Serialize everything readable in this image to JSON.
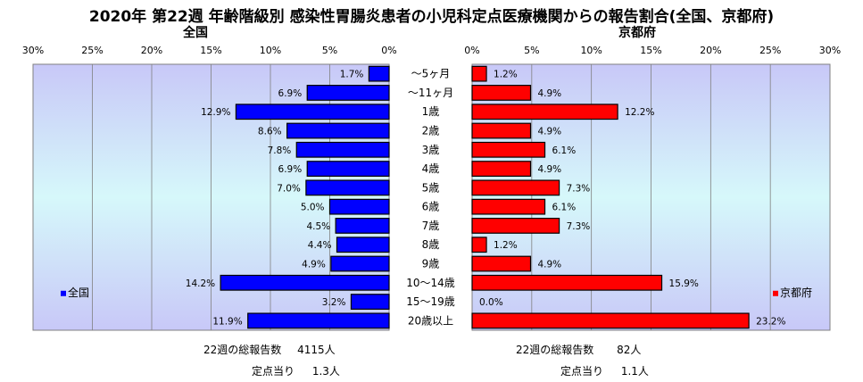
{
  "title": "2020年 第22週 年齢階級別 感染性胃腸炎患者の小児科定点医療機関からの報告割合(全国、京都府)",
  "colors": {
    "national": "#0000ff",
    "kyoto": "#ff0000",
    "gridline": "#808080",
    "plot_top": "#c8c8f8",
    "plot_mid": "#d6f8fa"
  },
  "chart_data": [
    {
      "type": "bar",
      "orientation": "horizontal",
      "direction": "right-to-left",
      "title": "全国",
      "legend": "全国",
      "legend_position": "bottom-left",
      "xlim": [
        0,
        30
      ],
      "tick_labels": [
        "30%",
        "25%",
        "20%",
        "15%",
        "10%",
        "5%",
        "0%"
      ],
      "grid": true,
      "categories": [
        "～5ヶ月",
        "～11ヶ月",
        "1歳",
        "2歳",
        "3歳",
        "4歳",
        "5歳",
        "6歳",
        "7歳",
        "8歳",
        "9歳",
        "10～14歳",
        "15～19歳",
        "20歳以上"
      ],
      "values": [
        1.7,
        6.9,
        12.9,
        8.6,
        7.8,
        6.9,
        7.0,
        5.0,
        4.5,
        4.4,
        4.9,
        14.2,
        3.2,
        11.9
      ],
      "value_labels": [
        "1.7%",
        "6.9%",
        "12.9%",
        "8.6%",
        "7.8%",
        "6.9%",
        "7.0%",
        "5.0%",
        "4.5%",
        "4.4%",
        "4.9%",
        "14.2%",
        "3.2%",
        "11.9%"
      ]
    },
    {
      "type": "bar",
      "orientation": "horizontal",
      "direction": "left-to-right",
      "title": "京都府",
      "legend": "京都府",
      "legend_position": "bottom-right",
      "xlim": [
        0,
        30
      ],
      "tick_labels": [
        "0%",
        "5%",
        "10%",
        "15%",
        "20%",
        "25%",
        "30%"
      ],
      "grid": true,
      "categories": [
        "～5ヶ月",
        "～11ヶ月",
        "1歳",
        "2歳",
        "3歳",
        "4歳",
        "5歳",
        "6歳",
        "7歳",
        "8歳",
        "9歳",
        "10～14歳",
        "15～19歳",
        "20歳以上"
      ],
      "values": [
        1.2,
        4.9,
        12.2,
        4.9,
        6.1,
        4.9,
        7.3,
        6.1,
        7.3,
        1.2,
        4.9,
        15.9,
        0.0,
        23.2
      ],
      "value_labels": [
        "1.2%",
        "4.9%",
        "12.2%",
        "4.9%",
        "6.1%",
        "4.9%",
        "7.3%",
        "6.1%",
        "7.3%",
        "1.2%",
        "4.9%",
        "15.9%",
        "0.0%",
        "23.2%"
      ]
    }
  ],
  "summary": {
    "national": {
      "total_label": "22週の総報告数",
      "total_value": "4115人",
      "per_point_label": "定点当り",
      "per_point_value": "1.3人"
    },
    "kyoto": {
      "total_label": "22週の総報告数",
      "total_value": "82人",
      "per_point_label": "定点当り",
      "per_point_value": "1.1人"
    }
  }
}
